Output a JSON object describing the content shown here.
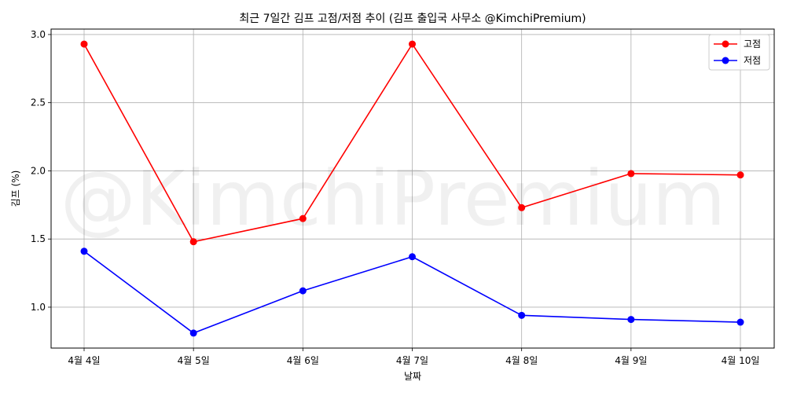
{
  "chart_data": {
    "type": "line",
    "title": "최근 7일간 김프 고점/저점 추이 (김프 출입국 사무소 @KimchiPremium)",
    "xlabel": "날짜",
    "ylabel": "김프 (%)",
    "categories": [
      "4월 4일",
      "4월 5일",
      "4월 6일",
      "4월 7일",
      "4월 8일",
      "4월 9일",
      "4월 10일"
    ],
    "ylim": [
      0.7,
      3.04
    ],
    "yticks": [
      1.0,
      1.5,
      2.0,
      2.5,
      3.0
    ],
    "ytick_labels": [
      "1.0",
      "1.5",
      "2.0",
      "2.5",
      "3.0"
    ],
    "grid": true,
    "legend_position": "top-right",
    "watermark": "@KimchiPremium",
    "series": [
      {
        "name": "고점",
        "color": "#ff0000",
        "values": [
          2.93,
          1.48,
          1.65,
          2.93,
          1.73,
          1.98,
          1.97
        ]
      },
      {
        "name": "저점",
        "color": "#0000ff",
        "values": [
          1.41,
          0.81,
          1.12,
          1.37,
          0.94,
          0.91,
          0.89
        ]
      }
    ]
  }
}
